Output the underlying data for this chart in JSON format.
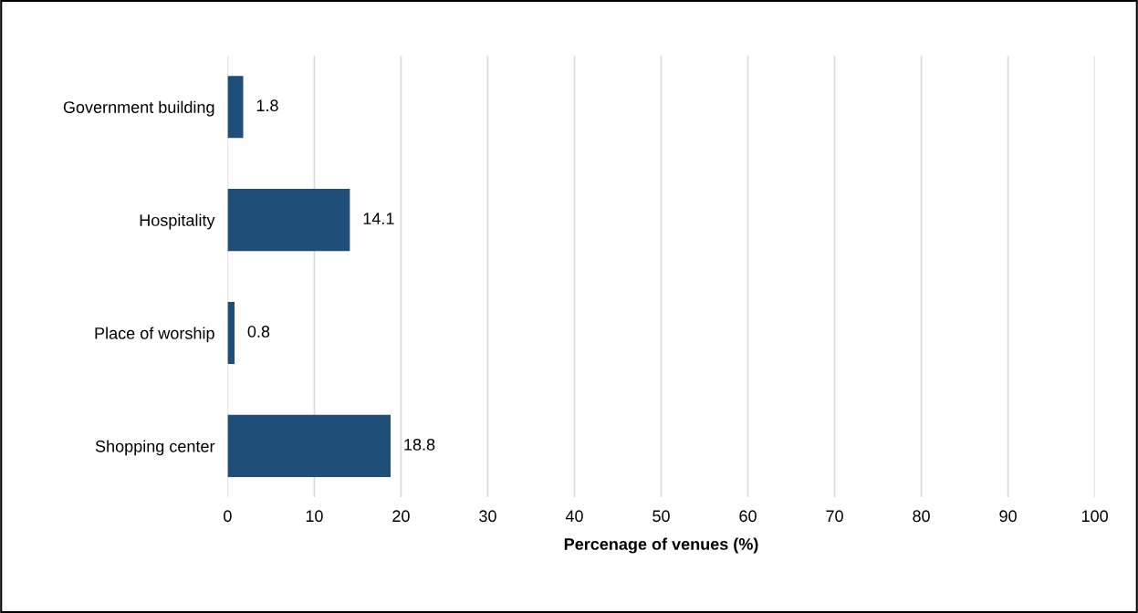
{
  "chart_data": {
    "type": "bar",
    "orientation": "horizontal",
    "xlabel": "Percenage of venues (%)",
    "categories": [
      "Government building",
      "Hospitality",
      "Place of worship",
      "Shopping center"
    ],
    "values": [
      1.8,
      14.1,
      0.8,
      18.8
    ],
    "color": "#1f4e79",
    "xlim": [
      0,
      100
    ],
    "xticks": [
      0,
      10,
      20,
      30,
      40,
      50,
      60,
      70,
      80,
      90,
      100
    ],
    "grid": "x",
    "data_labels": true
  }
}
